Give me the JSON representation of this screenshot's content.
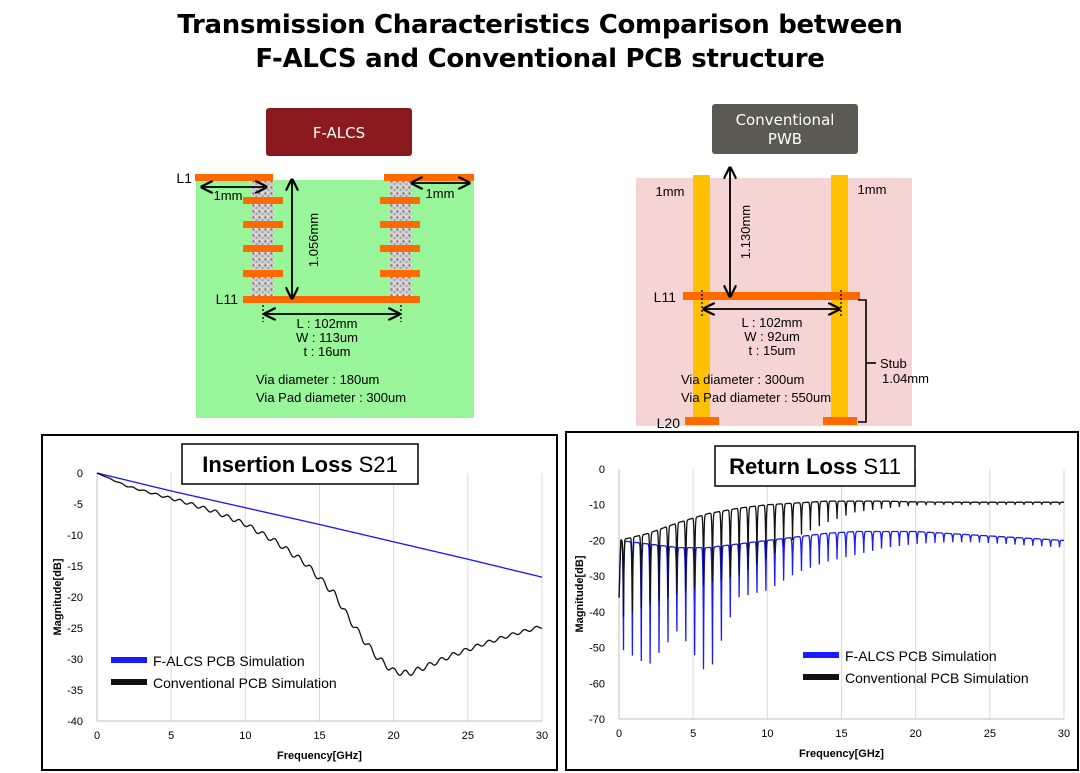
{
  "title": {
    "line1": "Transmission Characteristics Comparison between",
    "line2": "F-ALCS and Conventional PCB structure"
  },
  "falcs": {
    "badge": "F-ALCS",
    "layer_top": "L1",
    "layer_bottom": "L11",
    "left_gap": "1mm",
    "right_gap": "1mm",
    "height": "1.056mm",
    "length": "L : 102mm",
    "width": "W : 113um",
    "thickness": "t : 16um",
    "via_diameter": "Via diameter   : 180um",
    "via_pad_diameter": "Via Pad diameter : 300um",
    "colors": {
      "badge": "#8a1a1e",
      "board": "#99f599",
      "copper": "#ff6a00"
    }
  },
  "conv": {
    "badge_line1": "Conventional",
    "badge_line2": "PWB",
    "layer_mid": "L11",
    "layer_bottom": "L20",
    "left_gap": "1mm",
    "right_gap": "1mm",
    "height": "1.130mm",
    "length": "L : 102mm",
    "width": "W : 92um",
    "thickness": "t : 15um",
    "via_diameter": "Via diameter   : 300um",
    "via_pad_diameter": "Via Pad diameter : 550um",
    "stub_label": "Stub",
    "stub_value": "1.04mm",
    "colors": {
      "badge": "#5a5a52",
      "board": "#f7d4d4",
      "via": "#ffc000",
      "copper": "#ff6a00"
    }
  },
  "chart_data": [
    {
      "type": "line",
      "title": "Insertion Loss S21",
      "title_main": "Insertion Loss",
      "title_param": "S21",
      "xlabel": "Frequency[GHz]",
      "ylabel": "Magnitude[dB]",
      "xlim": [
        0,
        30
      ],
      "ylim": [
        -40,
        0
      ],
      "x_ticks": [
        "0",
        "5",
        "10",
        "15",
        "20",
        "25",
        "30"
      ],
      "y_ticks": [
        "0",
        "-5",
        "-10",
        "-15",
        "-20",
        "-25",
        "-30",
        "-35",
        "-40"
      ],
      "grid": "vertical",
      "legend": "bottom-left",
      "series": [
        {
          "name": "F-ALCS PCB Simulation",
          "color": "#1a1aff",
          "x": [
            0,
            5,
            10,
            15,
            20,
            25,
            30
          ],
          "y": [
            0,
            -2.9,
            -5.6,
            -8.3,
            -11.1,
            -13.9,
            -16.8
          ]
        },
        {
          "name": "Conventional PCB Simulation",
          "color": "#111111",
          "x": [
            0,
            2,
            4,
            6,
            8,
            10,
            12,
            14,
            16,
            17,
            18,
            19,
            20,
            21,
            22,
            24,
            26,
            28,
            30
          ],
          "y": [
            0,
            -2.0,
            -3.3,
            -4.5,
            -6.0,
            -7.9,
            -10.6,
            -14.0,
            -19.0,
            -23.0,
            -26.5,
            -29.5,
            -31.5,
            -31.9,
            -31.0,
            -29.0,
            -27.3,
            -25.8,
            -24.5
          ],
          "ripple_period_ghz": 0.8,
          "ripple_db": [
            0,
            0.2,
            0.3,
            0.5,
            0.6,
            0.7,
            0.8,
            0.9,
            1.0,
            1.0,
            1.0,
            1.0,
            1.0,
            0.9,
            0.8,
            0.7,
            0.6,
            0.5,
            0.5
          ]
        }
      ]
    },
    {
      "type": "line",
      "title": "Return Loss S11",
      "title_main": "Return Loss",
      "title_param": "S11",
      "xlabel": "Frequency[GHz]",
      "ylabel": "Magnitude[dB]",
      "xlim": [
        0,
        30
      ],
      "ylim": [
        -70,
        0
      ],
      "x_ticks": [
        "0",
        "5",
        "10",
        "15",
        "20",
        "25",
        "30"
      ],
      "y_ticks": [
        "0",
        "-10",
        "-20",
        "-30",
        "-40",
        "-50",
        "-60",
        "-70"
      ],
      "grid": "vertical",
      "legend": "bottom-right",
      "series": [
        {
          "name": "F-ALCS PCB Simulation",
          "color": "#1a1aff",
          "envelope_x": [
            0,
            2,
            4,
            6,
            8,
            10,
            12,
            14,
            16,
            18,
            20,
            22,
            24,
            26,
            28,
            30
          ],
          "envelope_y": [
            -20,
            -21,
            -22,
            -22,
            -21,
            -20,
            -19,
            -18,
            -17.5,
            -17.5,
            -17.5,
            -18,
            -18.5,
            -19,
            -19.5,
            -20
          ],
          "null_depth": [
            -50,
            -55,
            -45,
            -58,
            -36,
            -34,
            -29,
            -26,
            -24,
            -22,
            -21,
            -20.5,
            -20.5,
            -21,
            -21.5,
            -22
          ],
          "notch_period_ghz": 0.6
        },
        {
          "name": "Conventional PCB Simulation",
          "color": "#111111",
          "envelope_x": [
            0,
            2,
            4,
            6,
            8,
            10,
            12,
            14,
            16,
            18,
            20,
            22,
            24,
            26,
            28,
            30
          ],
          "envelope_y": [
            -20,
            -18,
            -15,
            -12.5,
            -11,
            -10,
            -9.5,
            -9,
            -9,
            -9,
            -9.2,
            -9.3,
            -9.3,
            -9.3,
            -9.3,
            -9.3
          ],
          "null_depth": [
            -42,
            -38,
            -35,
            -32,
            -30,
            -25,
            -19,
            -15,
            -12,
            -11,
            -10.2,
            -10,
            -10,
            -10,
            -10,
            -10
          ],
          "notch_period_ghz": 0.6
        }
      ]
    }
  ]
}
